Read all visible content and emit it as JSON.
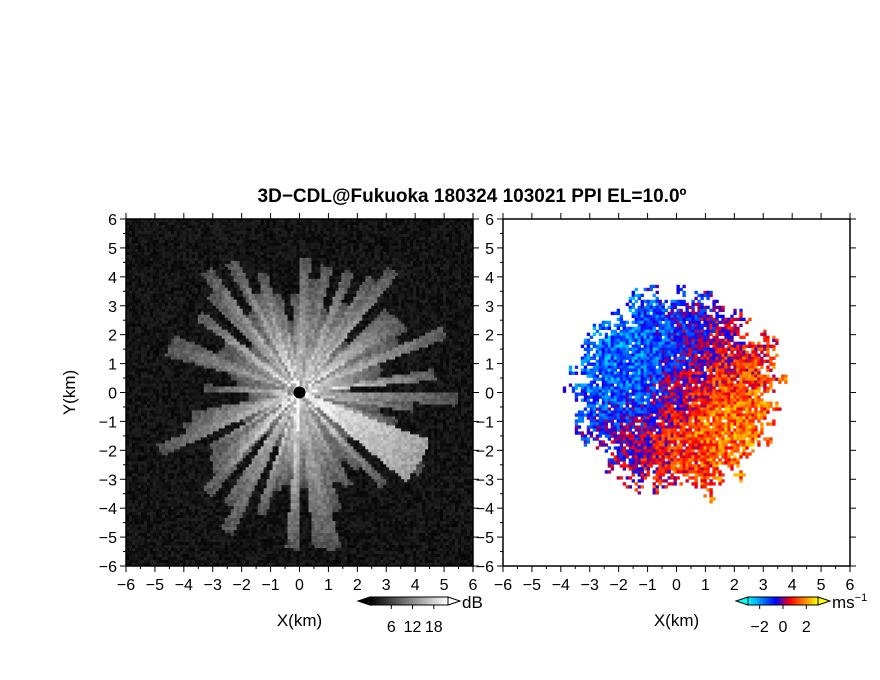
{
  "title": "3D−CDL@Fukuoka 180324 103021 PPI EL=10.0º",
  "chart_data": [
    {
      "type": "heatmap",
      "panel": "reflectivity",
      "xlabel": "X(km)",
      "ylabel": "Y(km)",
      "xlim": [
        -6,
        6
      ],
      "ylim": [
        -6,
        6
      ],
      "xticks": [
        "−6",
        "−5",
        "−4",
        "−3",
        "−2",
        "−1",
        "0",
        "1",
        "2",
        "3",
        "4",
        "5",
        "6"
      ],
      "yticks": [
        "−6",
        "−5",
        "−4",
        "−3",
        "−2",
        "−1",
        "0",
        "1",
        "2",
        "3",
        "4",
        "5",
        "6"
      ],
      "colorbar": {
        "unit": "dB",
        "ticks": [
          "6",
          "12",
          "18"
        ],
        "tick_values": [
          6,
          12,
          18
        ],
        "range": [
          0,
          22
        ],
        "colors": [
          "#000000",
          "#ffffff"
        ]
      },
      "background_color": "#101010",
      "radar_center": [
        0,
        0
      ],
      "echo_radius_km": 4.3,
      "brightest_sector": {
        "from_deg": -20,
        "to_deg": -40,
        "reach_km": 4.8
      }
    },
    {
      "type": "heatmap",
      "panel": "doppler_velocity",
      "xlabel": "X(km)",
      "xlim": [
        -6,
        6
      ],
      "ylim": [
        -6,
        6
      ],
      "xticks": [
        "−6",
        "−5",
        "−4",
        "−3",
        "−2",
        "−1",
        "0",
        "1",
        "2",
        "3",
        "4",
        "5",
        "6"
      ],
      "yticks": [
        "−6",
        "−5",
        "−4",
        "−3",
        "−2",
        "−1",
        "0",
        "1",
        "2",
        "3",
        "4",
        "5",
        "6"
      ],
      "colorbar": {
        "unit": "ms",
        "unit_exponent": "−1",
        "ticks": [
          "−2",
          "0",
          "2"
        ],
        "tick_values": [
          -2,
          0,
          2
        ],
        "range": [
          -3,
          3
        ],
        "colors": [
          "#00ffff",
          "#0080ff",
          "#0000ff",
          "#ff0000",
          "#ff8000",
          "#ffff00"
        ]
      },
      "background_color": "#ffffff",
      "radar_center": [
        0,
        0
      ],
      "echo_radius_km": 3.3
    }
  ]
}
